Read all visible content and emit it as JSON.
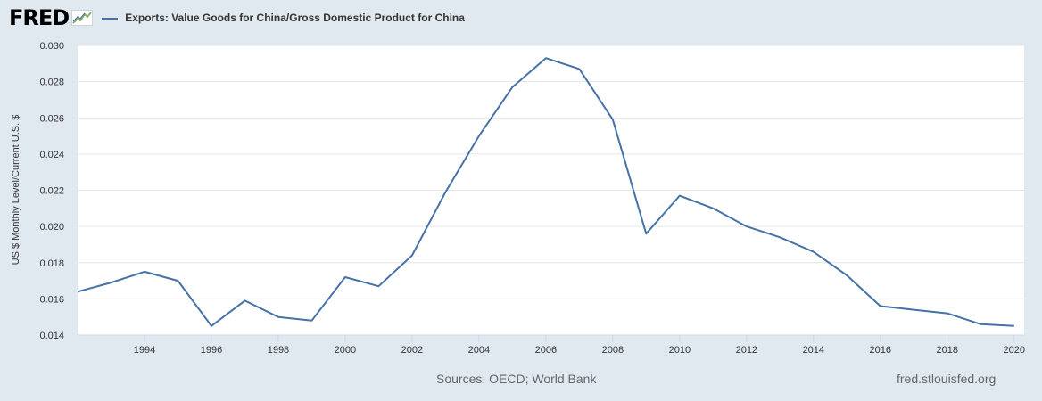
{
  "header": {
    "logo_text": "FRED",
    "logo_icon": "fred-chart-icon",
    "series_title": "Exports: Value Goods for China/Gross Domestic Product for China"
  },
  "footer": {
    "sources": "Sources: OECD; World Bank",
    "url": "fred.stlouisfed.org"
  },
  "colors": {
    "line": "#4572a7",
    "background": "#e1e9f0",
    "plot_background": "#ffffff",
    "grid": "#e6e6e6"
  },
  "chart_data": {
    "type": "line",
    "title": "Exports: Value Goods for China/Gross Domestic Product for China",
    "ylabel": "US $ Monthly Level/Current U.S. $",
    "xlabel": "",
    "xlim": [
      1992,
      2020.3
    ],
    "ylim": [
      0.014,
      0.03
    ],
    "grid": true,
    "legend": "top-left",
    "x_ticks": [
      1994,
      1996,
      1998,
      2000,
      2002,
      2004,
      2006,
      2008,
      2010,
      2012,
      2014,
      2016,
      2018,
      2020
    ],
    "x_tick_labels": [
      "1994",
      "1996",
      "1998",
      "2000",
      "2002",
      "2004",
      "2006",
      "2008",
      "2010",
      "2012",
      "2014",
      "2016",
      "2018",
      "2020"
    ],
    "y_ticks": [
      0.014,
      0.016,
      0.018,
      0.02,
      0.022,
      0.024,
      0.026,
      0.028,
      0.03
    ],
    "y_tick_labels": [
      "0.014",
      "0.016",
      "0.018",
      "0.020",
      "0.022",
      "0.024",
      "0.026",
      "0.028",
      "0.030"
    ],
    "series": [
      {
        "x": [
          1992,
          1993,
          1994,
          1995,
          1996,
          1997,
          1998,
          1999,
          2000,
          2001,
          2002,
          2003,
          2004,
          2005,
          2006,
          2007,
          2008,
          2009,
          2010,
          2011,
          2012,
          2013,
          2014,
          2015,
          2016,
          2017,
          2018,
          2019,
          2020
        ],
        "values": [
          0.0164,
          0.0169,
          0.0175,
          0.017,
          0.0145,
          0.0159,
          0.015,
          0.0148,
          0.0172,
          0.0167,
          0.0184,
          0.0219,
          0.025,
          0.0277,
          0.0293,
          0.0287,
          0.0259,
          0.0196,
          0.0217,
          0.021,
          0.02,
          0.0194,
          0.0186,
          0.0173,
          0.0156,
          0.0154,
          0.0152,
          0.0146,
          0.0145
        ]
      }
    ]
  }
}
